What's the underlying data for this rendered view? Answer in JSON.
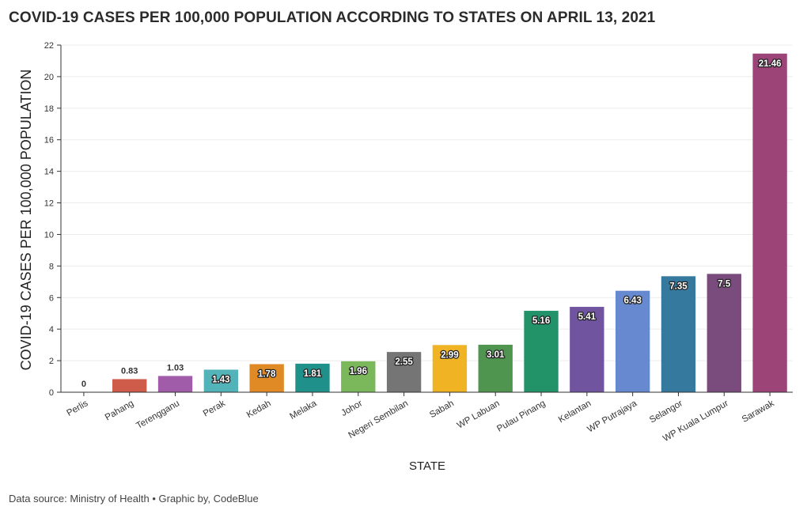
{
  "header": {
    "title": "COVID-19 CASES PER 100,000 POPULATION ACCORDING TO STATES ON APRIL 13, 2021"
  },
  "footer": {
    "source": "Data source: Ministry of Health • Graphic by, CodeBlue"
  },
  "chart_data": {
    "type": "bar",
    "title": "COVID-19 CASES PER 100,000 POPULATION ACCORDING TO STATES ON APRIL 13, 2021",
    "xlabel": "STATE",
    "ylabel": "COVID-19 CASES PER 100,000 POPULATION",
    "ylim": [
      0,
      22
    ],
    "yticks": [
      0,
      2,
      4,
      6,
      8,
      10,
      12,
      14,
      16,
      18,
      20,
      22
    ],
    "grid": true,
    "categories": [
      "Perlis",
      "Pahang",
      "Terengganu",
      "Perak",
      "Kedah",
      "Melaka",
      "Johor",
      "Negeri Sembilan",
      "Sabah",
      "WP Labuan",
      "Pulau Pinang",
      "Kelantan",
      "WP Putrajaya",
      "Selangor",
      "WP Kuala Lumpur",
      "Sarawak"
    ],
    "values": [
      0,
      0.83,
      1.03,
      1.43,
      1.78,
      1.81,
      1.96,
      2.55,
      2.99,
      3.01,
      5.16,
      5.41,
      6.43,
      7.35,
      7.5,
      21.46
    ],
    "value_labels": [
      "0",
      "0.83",
      "1.03",
      "1.43",
      "1.78",
      "1.81",
      "1.96",
      "2.55",
      "2.99",
      "3.01",
      "5.16",
      "5.41",
      "6.43",
      "7.35",
      "7.5",
      "21.46"
    ],
    "colors": [
      "#4f7fbf",
      "#cf5b4a",
      "#a05ca8",
      "#52b3b8",
      "#e08a25",
      "#20918a",
      "#7bb85b",
      "#757575",
      "#efb323",
      "#4f9550",
      "#229268",
      "#70549f",
      "#6689cf",
      "#35799f",
      "#7a4b7d",
      "#9c4378"
    ]
  }
}
